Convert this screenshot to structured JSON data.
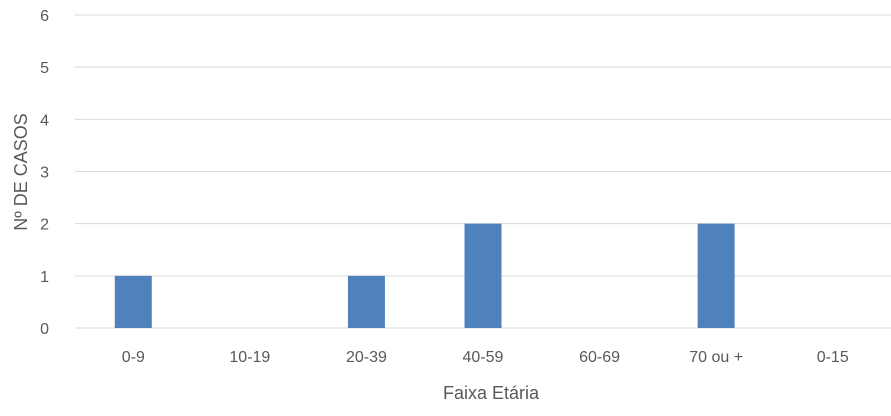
{
  "chart_data": {
    "type": "bar",
    "title": "",
    "xlabel": "Faixa Etária",
    "ylabel": "Nº DE CASOS",
    "categories": [
      "0-9",
      "10-19",
      "20-39",
      "40-59",
      "60-69",
      "70 ou +",
      "0-15"
    ],
    "values": [
      1,
      0,
      1,
      2,
      0,
      2,
      0
    ],
    "ylim": [
      0,
      6
    ],
    "yticks": [
      0,
      1,
      2,
      3,
      4,
      5,
      6
    ],
    "grid": true,
    "legend": "none",
    "colors": {
      "bar": "#4f81bd",
      "grid": "#d9d9d9",
      "text": "#595959"
    }
  }
}
